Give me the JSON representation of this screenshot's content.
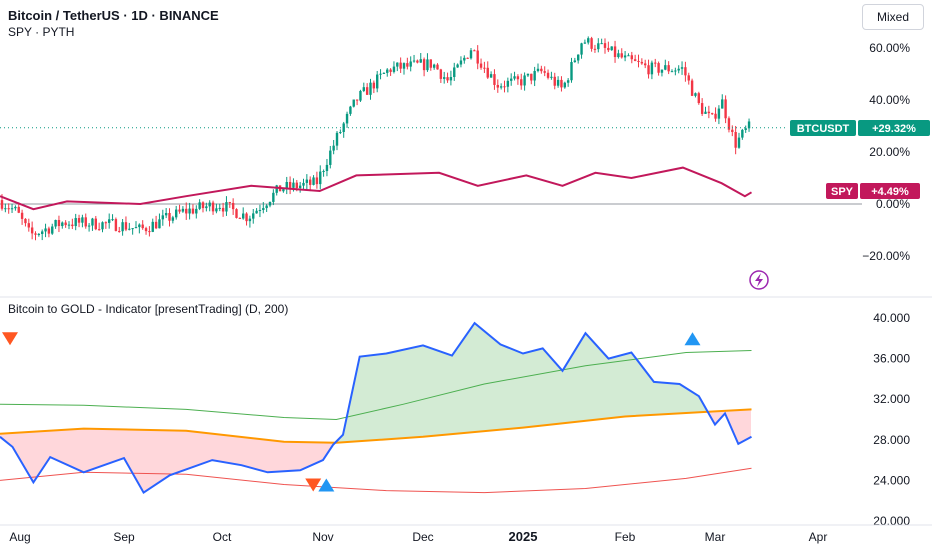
{
  "header": {
    "title": "Bitcoin / TetherUS · 1D · BINANCE",
    "compare_line": "SPY · PYTH",
    "scale_mode_button": "Mixed"
  },
  "indicator": {
    "title": "Bitcoin to GOLD - Indicator [presentTrading] (D, 200)"
  },
  "badges": {
    "btc_symbol": "BTCUSDT",
    "btc_change": "+29.32%",
    "spy_symbol": "SPY",
    "spy_change": "+4.49%"
  },
  "colors": {
    "btc_up": "#089981",
    "btc_down": "#f23645",
    "spy_line": "#c2185b",
    "ratio_line": "#2962ff",
    "ma_orange": "#ff9800",
    "upper_band": "#4caf50",
    "lower_band": "#ef5350",
    "fill_green": "#c8e6c9",
    "fill_red": "#ffcdd2",
    "sell_marker": "#ff5722",
    "buy_marker": "#2196f3"
  },
  "chart_data": [
    {
      "type": "candlestick",
      "title": "Bitcoin / TetherUS · 1D · BINANCE",
      "y_unit": "percent change",
      "y_ticks": [
        "60.00%",
        "40.00%",
        "20.00%",
        "0.00%",
        "−20.00%"
      ],
      "y_tick_values": [
        60,
        40,
        20,
        0,
        -20
      ],
      "ylim": [
        -28,
        68
      ],
      "x_ticks": [
        "Aug",
        "Sep",
        "Oct",
        "Nov",
        "Dec",
        "2025",
        "Feb",
        "Mar",
        "Apr"
      ],
      "date_range": [
        "2024-07-24",
        "2025-03-12"
      ],
      "series": [
        {
          "name": "BTCUSDT",
          "last_value": 29.32,
          "x": [
            "2024-07-24",
            "2024-08-01",
            "2024-08-05",
            "2024-08-15",
            "2024-09-01",
            "2024-09-07",
            "2024-09-20",
            "2024-10-01",
            "2024-10-10",
            "2024-10-20",
            "2024-10-31",
            "2024-11-06",
            "2024-11-12",
            "2024-11-22",
            "2024-12-05",
            "2024-12-10",
            "2024-12-17",
            "2024-12-25",
            "2025-01-01",
            "2025-01-08",
            "2025-01-14",
            "2025-01-20",
            "2025-01-26",
            "2025-02-03",
            "2025-02-10",
            "2025-02-20",
            "2025-02-25",
            "2025-03-01",
            "2025-03-04",
            "2025-03-08",
            "2025-03-12"
          ],
          "values": [
            2,
            -3,
            -12,
            -7,
            -8,
            -10,
            -3,
            0,
            -5,
            6,
            8,
            25,
            40,
            52,
            54,
            47,
            60,
            46,
            47,
            51,
            44,
            63,
            60,
            55,
            52,
            52,
            38,
            32,
            40,
            23,
            29.32
          ]
        },
        {
          "name": "SPY",
          "last_value": 4.49,
          "x": [
            "2024-07-24",
            "2024-08-05",
            "2024-08-15",
            "2024-09-06",
            "2024-09-20",
            "2024-10-10",
            "2024-10-31",
            "2024-11-11",
            "2024-12-06",
            "2024-12-18",
            "2025-01-02",
            "2025-01-13",
            "2025-01-23",
            "2025-02-03",
            "2025-02-19",
            "2025-03-03",
            "2025-03-10",
            "2025-03-12"
          ],
          "values": [
            3,
            -2,
            1,
            0,
            3,
            7,
            5,
            11,
            12,
            7,
            11,
            7,
            12,
            10,
            14,
            8,
            3,
            4.49
          ]
        }
      ]
    },
    {
      "type": "line",
      "title": "Bitcoin to GOLD - Indicator [presentTrading] (D, 200)",
      "y_ticks": [
        "40.000",
        "36.000",
        "32.000",
        "28.000",
        "24.000",
        "20.000"
      ],
      "y_tick_values": [
        40,
        36,
        32,
        28,
        24,
        20
      ],
      "ylim": [
        20,
        40.8
      ],
      "x_ticks": [
        "Aug",
        "Sep",
        "Oct",
        "Nov",
        "Dec",
        "2025",
        "Feb",
        "Mar",
        "Apr"
      ],
      "series": [
        {
          "name": "BTC/GOLD ratio",
          "x": [
            "2024-07-24",
            "2024-07-29",
            "2024-08-05",
            "2024-08-10",
            "2024-08-20",
            "2024-09-01",
            "2024-09-07",
            "2024-09-15",
            "2024-09-28",
            "2024-10-07",
            "2024-10-15",
            "2024-10-25",
            "2024-11-01",
            "2024-11-04",
            "2024-11-07",
            "2024-11-12",
            "2024-11-20",
            "2024-12-01",
            "2024-12-10",
            "2024-12-17",
            "2024-12-25",
            "2025-01-01",
            "2025-01-07",
            "2025-01-13",
            "2025-01-20",
            "2025-01-27",
            "2025-02-03",
            "2025-02-10",
            "2025-02-18",
            "2025-02-24",
            "2025-03-01",
            "2025-03-04",
            "2025-03-08",
            "2025-03-12"
          ],
          "values": [
            28.3,
            27.3,
            23.8,
            26.3,
            24.8,
            26.2,
            22.8,
            24.5,
            26.0,
            25.5,
            24.8,
            25.0,
            26.0,
            27.5,
            28.5,
            36.2,
            36.5,
            37.3,
            36.3,
            39.5,
            37.4,
            36.5,
            37.0,
            34.8,
            38.5,
            36.0,
            36.6,
            33.7,
            33.5,
            32.3,
            29.5,
            30.6,
            27.6,
            28.3
          ]
        },
        {
          "name": "200-day average",
          "x": [
            "2024-07-24",
            "2024-08-20",
            "2024-09-20",
            "2024-10-20",
            "2024-11-05",
            "2024-12-01",
            "2025-01-01",
            "2025-02-01",
            "2025-03-01",
            "2025-03-12"
          ],
          "values": [
            28.6,
            29.1,
            28.9,
            27.8,
            27.7,
            28.3,
            29.2,
            30.3,
            30.8,
            31.0
          ]
        },
        {
          "name": "upper band",
          "x": [
            "2024-07-24",
            "2024-08-20",
            "2024-09-20",
            "2024-10-20",
            "2024-11-05",
            "2024-11-25",
            "2024-12-20",
            "2025-01-20",
            "2025-02-20",
            "2025-03-12"
          ],
          "values": [
            31.5,
            31.4,
            31.0,
            30.2,
            30.0,
            31.5,
            33.5,
            35.3,
            36.6,
            36.8
          ]
        },
        {
          "name": "lower band",
          "x": [
            "2024-07-24",
            "2024-08-20",
            "2024-09-20",
            "2024-10-20",
            "2024-11-20",
            "2024-12-20",
            "2025-01-20",
            "2025-02-20",
            "2025-03-12"
          ],
          "values": [
            24.0,
            24.8,
            24.6,
            23.6,
            23.0,
            22.8,
            23.2,
            24.2,
            25.2
          ]
        }
      ],
      "markers": [
        {
          "kind": "sell",
          "x": "2024-07-28",
          "y": 38.0
        },
        {
          "kind": "sell",
          "x": "2024-10-29",
          "y": 23.6
        },
        {
          "kind": "buy",
          "x": "2024-11-02",
          "y": 23.6
        },
        {
          "kind": "buy",
          "x": "2025-02-22",
          "y": 38.0
        }
      ]
    }
  ]
}
